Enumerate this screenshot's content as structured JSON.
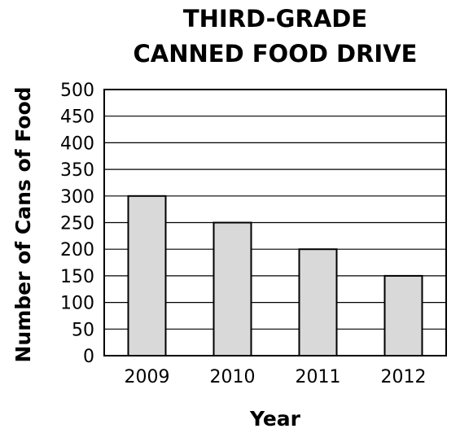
{
  "chart_data": {
    "type": "bar",
    "title_lines": [
      "THIRD-GRADE",
      "CANNED FOOD DRIVE"
    ],
    "xlabel": "Year",
    "ylabel": "Number of Cans of Food",
    "categories": [
      "2009",
      "2010",
      "2011",
      "2012"
    ],
    "values": [
      300,
      250,
      200,
      150
    ],
    "ylim": [
      0,
      500
    ],
    "yticks": [
      0,
      50,
      100,
      150,
      200,
      250,
      300,
      350,
      400,
      450,
      500
    ],
    "grid": true,
    "bar_color": "#d9d9d9",
    "edge_color": "#000000"
  }
}
